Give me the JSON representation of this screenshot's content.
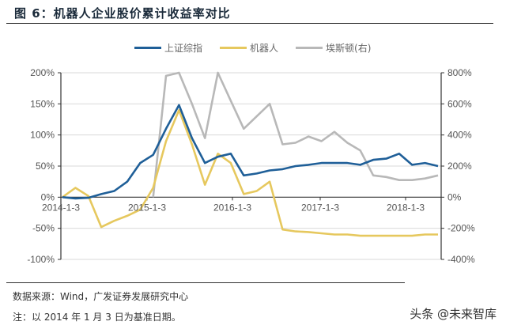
{
  "header": {
    "title": "图 6：机器人企业股价累计收益率对比"
  },
  "legend": [
    {
      "label": "上证综指",
      "color": "#1f5f98"
    },
    {
      "label": "机器人",
      "color": "#e6c85e"
    },
    {
      "label": "埃斯顿(右)",
      "color": "#b8b8b8"
    }
  ],
  "footer": {
    "source": "数据来源：Wind，广发证券发展研究中心",
    "note": "注：以 2014 年 1 月 3 日为基准日期。",
    "watermark": "头条 @未来智库"
  },
  "chart_data": {
    "type": "line",
    "title": "图 6：机器人企业股价累计收益率对比",
    "xlabel": "",
    "ylabel_left": "",
    "ylabel_right": "",
    "x_ticks": [
      "2014-1-3",
      "2015-1-3",
      "2016-1-3",
      "2017-1-3",
      "2018-1-3"
    ],
    "y_left_ticks": [
      "200%",
      "150%",
      "100%",
      "50%",
      "0%",
      "-50%",
      "-100%"
    ],
    "y_right_ticks": [
      "800%",
      "600%",
      "400%",
      "200%",
      "0%",
      "-200%",
      "-400%"
    ],
    "ylim_left": [
      -100,
      200
    ],
    "ylim_right": [
      -400,
      800
    ],
    "grid": true,
    "legend_position": "top",
    "x": [
      "2014-01",
      "2014-03",
      "2014-05",
      "2014-07",
      "2014-09",
      "2014-11",
      "2015-01",
      "2015-03",
      "2015-05",
      "2015-06",
      "2015-07",
      "2015-09",
      "2015-11",
      "2015-12",
      "2016-01",
      "2016-03",
      "2016-05",
      "2016-07",
      "2016-09",
      "2016-11",
      "2017-01",
      "2017-03",
      "2017-05",
      "2017-07",
      "2017-09",
      "2017-11",
      "2018-01",
      "2018-02",
      "2018-03",
      "2018-05"
    ],
    "series": [
      {
        "name": "上证综指",
        "axis": "left",
        "values": [
          0,
          -2,
          -1,
          5,
          10,
          25,
          55,
          68,
          110,
          148,
          95,
          55,
          65,
          70,
          35,
          38,
          43,
          45,
          50,
          52,
          55,
          55,
          55,
          52,
          60,
          62,
          70,
          52,
          55,
          50
        ]
      },
      {
        "name": "机器人",
        "axis": "left",
        "values": [
          0,
          15,
          2,
          -48,
          -38,
          -30,
          -20,
          15,
          90,
          140,
          85,
          20,
          70,
          55,
          5,
          10,
          25,
          -52,
          -55,
          -56,
          -58,
          -60,
          -60,
          -62,
          -62,
          -62,
          -62,
          -62,
          -60,
          -60
        ]
      },
      {
        "name": "埃斯顿(右)",
        "axis": "right",
        "values": [
          null,
          null,
          null,
          null,
          null,
          null,
          null,
          0,
          780,
          900,
          600,
          380,
          800,
          620,
          440,
          520,
          600,
          340,
          350,
          390,
          360,
          420,
          350,
          300,
          140,
          130,
          110,
          110,
          120,
          140
        ]
      }
    ]
  }
}
